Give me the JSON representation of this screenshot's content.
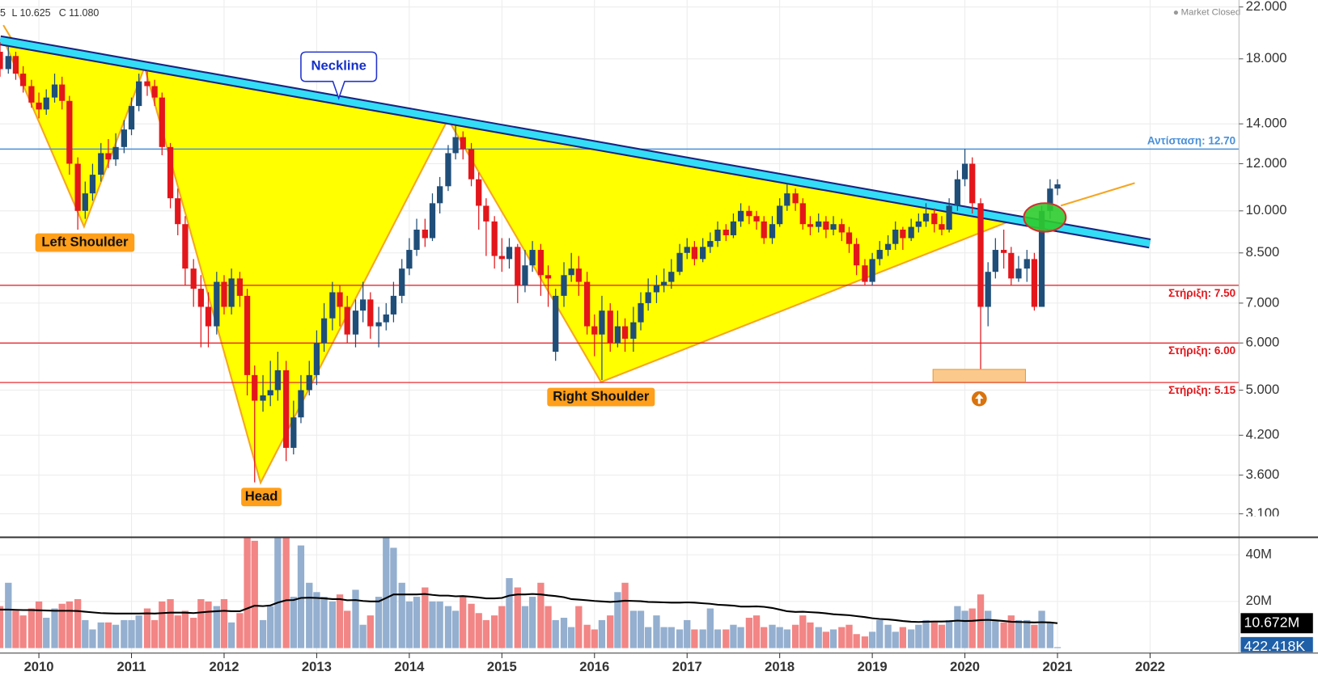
{
  "chart_data": {
    "type": "candlestick",
    "header": [
      "5",
      "L 10.625",
      "C 11.080"
    ],
    "status": "Market Closed",
    "x": [
      2009.58,
      2009.67,
      2009.75,
      2009.83,
      2009.92,
      2010.0,
      2010.08,
      2010.17,
      2010.25,
      2010.33,
      2010.42,
      2010.5,
      2010.58,
      2010.67,
      2010.75,
      2010.83,
      2010.92,
      2011.0,
      2011.08,
      2011.17,
      2011.25,
      2011.33,
      2011.42,
      2011.5,
      2011.58,
      2011.67,
      2011.75,
      2011.83,
      2011.92,
      2012.0,
      2012.08,
      2012.17,
      2012.25,
      2012.33,
      2012.42,
      2012.5,
      2012.58,
      2012.67,
      2012.75,
      2012.83,
      2012.92,
      2013.0,
      2013.08,
      2013.17,
      2013.25,
      2013.33,
      2013.42,
      2013.5,
      2013.58,
      2013.67,
      2013.75,
      2013.83,
      2013.92,
      2014.0,
      2014.08,
      2014.17,
      2014.25,
      2014.33,
      2014.42,
      2014.5,
      2014.58,
      2014.67,
      2014.75,
      2014.83,
      2014.92,
      2015.0,
      2015.08,
      2015.17,
      2015.25,
      2015.33,
      2015.42,
      2015.5,
      2015.58,
      2015.67,
      2015.75,
      2015.83,
      2015.92,
      2016.0,
      2016.08,
      2016.17,
      2016.25,
      2016.33,
      2016.42,
      2016.5,
      2016.58,
      2016.67,
      2016.75,
      2016.83,
      2016.92,
      2017.0,
      2017.08,
      2017.17,
      2017.25,
      2017.33,
      2017.42,
      2017.5,
      2017.58,
      2017.67,
      2017.75,
      2017.83,
      2017.92,
      2018.0,
      2018.08,
      2018.17,
      2018.25,
      2018.33,
      2018.42,
      2018.5,
      2018.58,
      2018.67,
      2018.75,
      2018.83,
      2018.92,
      2019.0,
      2019.08,
      2019.17,
      2019.25,
      2019.33,
      2019.42,
      2019.5,
      2019.58,
      2019.67,
      2019.75,
      2019.83,
      2019.92,
      2020.0,
      2020.08,
      2020.17,
      2020.25,
      2020.33,
      2020.42,
      2020.5,
      2020.58,
      2020.67,
      2020.75,
      2020.83,
      2020.92,
      2021.0
    ],
    "open": [
      18.5,
      17.3,
      18.2,
      17.0,
      16.2,
      15.2,
      14.8,
      15.5,
      16.3,
      15.3,
      12.0,
      10.0,
      10.7,
      11.5,
      12.5,
      12.2,
      12.8,
      13.7,
      15.0,
      16.5,
      16.2,
      15.5,
      12.8,
      10.5,
      9.5,
      8.0,
      7.4,
      6.9,
      6.4,
      7.6,
      6.9,
      7.7,
      7.2,
      5.3,
      4.8,
      4.9,
      5.0,
      5.4,
      4.0,
      4.5,
      5.0,
      5.3,
      6.0,
      6.6,
      7.3,
      6.9,
      6.2,
      6.8,
      7.1,
      6.4,
      6.5,
      6.7,
      7.2,
      8.0,
      8.6,
      9.3,
      9.0,
      10.3,
      11.0,
      12.5,
      13.3,
      12.7,
      11.3,
      10.2,
      9.6,
      8.4,
      8.3,
      8.7,
      7.5,
      8.1,
      8.6,
      7.8,
      5.8,
      7.2,
      7.8,
      8.0,
      7.6,
      6.4,
      6.2,
      6.8,
      6.0,
      6.4,
      6.1,
      6.5,
      7.0,
      7.3,
      7.5,
      7.6,
      7.9,
      8.5,
      8.7,
      8.3,
      8.7,
      8.9,
      9.3,
      9.1,
      9.6,
      10.0,
      9.8,
      9.6,
      9.0,
      9.5,
      10.2,
      10.7,
      10.3,
      9.5,
      9.4,
      9.6,
      9.3,
      9.5,
      9.2,
      8.8,
      8.1,
      7.6,
      8.3,
      8.6,
      8.8,
      9.3,
      9.0,
      9.4,
      9.6,
      9.9,
      9.5,
      9.3,
      10.2,
      11.3,
      12.0,
      10.3,
      6.9,
      7.9,
      8.6,
      8.5,
      7.7,
      8.0,
      8.3,
      6.9,
      10.0,
      10.9
    ],
    "high": [
      19.2,
      18.9,
      18.5,
      17.5,
      16.6,
      15.8,
      16.0,
      17.0,
      16.8,
      15.6,
      12.3,
      11.2,
      12.0,
      13.0,
      13.2,
      13.5,
      14.2,
      15.5,
      17.0,
      17.2,
      16.6,
      15.8,
      13.0,
      10.9,
      9.8,
      8.3,
      7.8,
      7.3,
      7.9,
      7.8,
      8.0,
      7.9,
      7.4,
      5.5,
      5.3,
      5.6,
      5.8,
      5.6,
      4.8,
      5.3,
      5.6,
      6.3,
      7.0,
      7.6,
      7.5,
      7.2,
      7.1,
      7.6,
      7.3,
      6.9,
      7.0,
      7.6,
      8.3,
      9.0,
      9.7,
      9.7,
      10.7,
      11.4,
      12.9,
      13.9,
      13.6,
      13.0,
      11.6,
      10.5,
      9.8,
      9.0,
      9.0,
      8.8,
      8.6,
      8.9,
      8.8,
      8.1,
      7.4,
      8.2,
      8.5,
      8.4,
      7.9,
      6.7,
      7.2,
      7.0,
      6.8,
      6.6,
      6.9,
      7.3,
      7.7,
      7.8,
      8.0,
      8.3,
      8.8,
      9.0,
      8.9,
      9.0,
      9.2,
      9.6,
      9.5,
      9.9,
      10.3,
      10.2,
      10.0,
      9.8,
      9.8,
      10.5,
      11.1,
      10.9,
      10.5,
      9.8,
      9.9,
      9.8,
      9.8,
      9.7,
      9.4,
      9.0,
      8.3,
      8.5,
      8.9,
      9.1,
      9.6,
      9.4,
      9.7,
      9.9,
      10.3,
      10.1,
      9.8,
      10.5,
      11.7,
      12.7,
      12.3,
      10.5,
      8.2,
      9.0,
      9.3,
      8.7,
      8.4,
      8.6,
      8.5,
      10.2,
      11.3,
      11.3
    ],
    "low": [
      16.8,
      17.0,
      16.6,
      15.8,
      14.9,
      14.3,
      14.5,
      15.2,
      14.8,
      11.5,
      9.3,
      9.7,
      10.4,
      11.2,
      11.8,
      11.9,
      12.5,
      13.4,
      14.7,
      15.6,
      15.0,
      12.4,
      10.1,
      9.1,
      7.5,
      6.9,
      5.9,
      5.9,
      6.2,
      6.7,
      6.7,
      6.9,
      4.9,
      3.5,
      4.6,
      4.7,
      4.8,
      3.8,
      3.9,
      4.4,
      4.9,
      5.1,
      5.8,
      6.3,
      6.4,
      6.0,
      5.9,
      6.5,
      6.1,
      5.9,
      6.3,
      6.5,
      7.0,
      7.8,
      8.4,
      8.7,
      8.9,
      9.9,
      10.8,
      12.2,
      12.2,
      11.0,
      9.3,
      8.4,
      8.0,
      7.9,
      8.0,
      7.0,
      7.3,
      7.9,
      7.2,
      6.9,
      5.6,
      6.9,
      7.6,
      7.2,
      6.2,
      5.7,
      5.2,
      5.8,
      5.9,
      5.8,
      5.8,
      6.3,
      6.8,
      7.0,
      7.3,
      7.4,
      7.8,
      8.3,
      8.1,
      8.2,
      8.5,
      8.7,
      8.9,
      9.0,
      9.4,
      9.5,
      9.3,
      8.8,
      8.8,
      9.4,
      10.0,
      10.0,
      9.3,
      9.1,
      9.2,
      9.0,
      9.1,
      8.9,
      8.5,
      7.8,
      7.5,
      7.5,
      8.1,
      8.4,
      8.6,
      8.6,
      8.9,
      9.2,
      9.4,
      9.2,
      9.1,
      9.2,
      10.0,
      11.0,
      9.9,
      5.4,
      6.4,
      7.7,
      8.0,
      7.5,
      7.6,
      7.6,
      6.8,
      6.9,
      9.7,
      10.625
    ],
    "close": [
      17.3,
      18.2,
      17.0,
      16.2,
      15.2,
      14.8,
      15.5,
      16.3,
      15.3,
      12.0,
      10.0,
      10.7,
      11.5,
      12.5,
      12.2,
      12.8,
      13.7,
      15.0,
      16.5,
      16.2,
      15.5,
      12.8,
      10.5,
      9.5,
      8.0,
      7.4,
      6.9,
      6.4,
      7.6,
      6.9,
      7.7,
      7.2,
      5.3,
      4.8,
      4.9,
      5.0,
      5.4,
      4.0,
      4.5,
      5.0,
      5.3,
      6.0,
      6.6,
      7.3,
      6.9,
      6.2,
      6.8,
      7.1,
      6.4,
      6.5,
      6.7,
      7.2,
      8.0,
      8.6,
      9.3,
      9.0,
      10.3,
      11.0,
      12.5,
      13.3,
      12.7,
      11.3,
      10.2,
      9.6,
      8.4,
      8.3,
      8.7,
      7.5,
      8.1,
      8.6,
      7.8,
      7.7,
      7.2,
      7.8,
      8.0,
      7.6,
      6.4,
      6.2,
      6.8,
      6.0,
      6.4,
      6.1,
      6.5,
      7.0,
      7.3,
      7.5,
      7.6,
      7.9,
      8.5,
      8.7,
      8.3,
      8.7,
      8.9,
      9.3,
      9.1,
      9.6,
      10.0,
      9.8,
      9.6,
      9.0,
      9.5,
      10.2,
      10.7,
      10.3,
      9.5,
      9.4,
      9.6,
      9.3,
      9.5,
      9.2,
      8.8,
      8.1,
      7.6,
      8.3,
      8.6,
      8.8,
      9.3,
      9.0,
      9.4,
      9.6,
      9.9,
      9.5,
      9.3,
      10.2,
      11.3,
      12.0,
      10.3,
      6.9,
      7.9,
      8.6,
      8.5,
      7.7,
      8.0,
      8.3,
      6.9,
      10.0,
      10.9,
      11.08
    ],
    "up_color": "#1f4e79",
    "down_color": "#e3161b",
    "xlim": [
      2009.58,
      2022.96
    ],
    "xticks": [
      2010,
      2011,
      2012,
      2013,
      2014,
      2015,
      2016,
      2017,
      2018,
      2019,
      2020,
      2021,
      2022
    ],
    "ylim": [
      3.1,
      22.6
    ],
    "log_y": true,
    "grid": true,
    "yticks": [
      {
        "value": 22,
        "label": "22.000"
      },
      {
        "value": 18,
        "label": "18.000"
      },
      {
        "value": 14,
        "label": "14.000"
      },
      {
        "value": 12,
        "label": "12.000"
      },
      {
        "value": 10,
        "label": "10.000"
      },
      {
        "value": 8.5,
        "label": "8.500"
      },
      {
        "value": 7,
        "label": "7.000"
      },
      {
        "value": 6,
        "label": "6.000"
      },
      {
        "value": 5,
        "label": "5.000"
      },
      {
        "value": 4.2,
        "label": "4.200"
      },
      {
        "value": 3.6,
        "label": "3.600"
      },
      {
        "value": 3.1,
        "label": "3.100"
      }
    ],
    "levels": [
      {
        "value": 12.7,
        "label": "Αντίσταση: 12.70",
        "color": "#4a90d9"
      },
      {
        "value": 7.5,
        "label": "Στήριξη: 7.50",
        "color": "#e3161b"
      },
      {
        "value": 6.0,
        "label": "Στήριξη: 6.00",
        "color": "#e3161b"
      },
      {
        "value": 5.15,
        "label": "Στήριξη: 5.15",
        "color": "#e3161b"
      }
    ],
    "annotations": {
      "neckline": "Neckline",
      "left_shoulder": "Left Shoulder",
      "head": "Head",
      "right_shoulder": "Right Shoulder"
    },
    "volume": {
      "values": [
        18,
        28,
        16,
        14,
        17,
        20,
        13,
        17,
        19,
        20,
        21,
        12,
        8,
        11,
        11,
        10,
        12,
        12,
        14,
        17,
        12,
        20,
        21,
        14,
        16,
        13,
        21,
        20,
        18,
        21,
        11,
        15,
        48,
        46,
        12,
        18,
        48,
        48,
        22,
        44,
        28,
        24,
        22,
        20,
        23,
        16,
        25,
        10,
        14,
        22,
        48,
        43,
        28,
        20,
        22,
        26,
        20,
        20,
        18,
        16,
        22,
        19,
        15,
        12,
        14,
        18,
        30,
        26,
        18,
        22,
        28,
        18,
        12,
        13,
        9,
        18,
        10,
        8,
        12,
        14,
        24,
        28,
        16,
        16,
        9,
        14,
        9,
        9,
        8,
        12,
        8,
        8,
        17,
        8,
        8,
        10,
        9,
        13,
        14,
        9,
        10,
        9,
        8,
        10,
        14,
        11,
        9,
        7,
        8,
        9,
        10,
        6,
        5,
        7,
        12,
        10,
        7,
        9,
        8,
        10,
        12,
        11,
        10,
        12,
        18,
        16,
        17,
        23,
        16,
        12,
        11,
        14,
        12,
        12,
        10,
        16,
        11,
        0.422418
      ],
      "up_color": "#94afcf",
      "down_color": "#f28585",
      "ylim": [
        0,
        47.5
      ],
      "yticks": [
        {
          "value": 40,
          "label": "40M"
        },
        {
          "value": 20,
          "label": "20M"
        }
      ],
      "ma": {
        "color": "#000000",
        "values": [
          16.5,
          16.5,
          16.4,
          16.3,
          16.3,
          16.2,
          16.1,
          16.0,
          16.0,
          16.0,
          15.9,
          15.6,
          15.3,
          15.0,
          14.9,
          14.8,
          14.8,
          14.8,
          14.8,
          14.9,
          14.8,
          15.0,
          15.2,
          15.2,
          15.2,
          15.0,
          15.3,
          15.6,
          15.8,
          16.0,
          15.8,
          15.8,
          17.0,
          18.2,
          18.0,
          18.3,
          19.5,
          20.5,
          20.6,
          21.5,
          21.6,
          21.5,
          21.3,
          21.0,
          21.0,
          20.5,
          20.6,
          20.2,
          20.0,
          20.0,
          21.5,
          23.0,
          23.0,
          23.0,
          23.0,
          23.2,
          22.8,
          22.5,
          22.5,
          22.2,
          22.3,
          22.0,
          21.7,
          21.3,
          21.3,
          21.5,
          22.5,
          23.0,
          23.0,
          23.2,
          23.0,
          22.6,
          22.3,
          21.8,
          21.0,
          20.8,
          20.5,
          20.2,
          20.0,
          19.8,
          20.0,
          20.3,
          20.2,
          20.1,
          19.8,
          19.7,
          19.6,
          19.5,
          19.5,
          19.6,
          19.5,
          19.2,
          19.0,
          18.6,
          18.4,
          18.2,
          17.8,
          17.8,
          17.9,
          17.7,
          17.2,
          16.5,
          15.8,
          15.5,
          15.6,
          15.4,
          15.2,
          14.9,
          14.5,
          14.3,
          14.1,
          13.7,
          13.3,
          12.8,
          12.5,
          12.3,
          12.0,
          11.6,
          11.3,
          11.2,
          11.3,
          11.4,
          11.4,
          11.5,
          11.8,
          11.6,
          11.7,
          12.0,
          12.1,
          11.9,
          11.6,
          11.3,
          11.2,
          11.1,
          11.0,
          11.1,
          11.0,
          10.672
        ]
      },
      "ma_tag": {
        "value": 10.672,
        "label": "10.672M"
      },
      "volume_tag": {
        "value": 0.422418,
        "label": "422.418K"
      }
    }
  }
}
